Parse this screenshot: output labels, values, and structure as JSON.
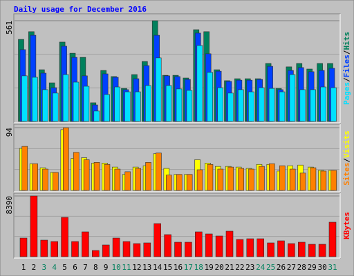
{
  "chart_data": [
    {
      "type": "bar",
      "title": "Daily usage for December 2016",
      "ylim": [
        0,
        561
      ],
      "yticks": [
        561
      ],
      "legend_separator": "/",
      "series": [
        {
          "name": "Hits",
          "color": "#00805c",
          "values": [
            457,
            500,
            288,
            215,
            442,
            380,
            357,
            104,
            284,
            250,
            184,
            261,
            334,
            561,
            257,
            257,
            242,
            511,
            500,
            288,
            227,
            238,
            238,
            238,
            323,
            184,
            304,
            323,
            292,
            323,
            323
          ]
        },
        {
          "name": "Files",
          "color": "#0040ff",
          "values": [
            400,
            480,
            269,
            188,
            419,
            357,
            254,
            92,
            265,
            246,
            177,
            238,
            311,
            480,
            254,
            250,
            234,
            492,
            377,
            280,
            223,
            230,
            230,
            234,
            307,
            177,
            284,
            300,
            277,
            284,
            296
          ]
        },
        {
          "name": "Pages",
          "color": "#00e0ff",
          "values": [
            254,
            246,
            177,
            158,
            261,
            219,
            196,
            58,
            150,
            192,
            165,
            165,
            200,
            354,
            200,
            181,
            173,
            423,
            273,
            188,
            158,
            177,
            165,
            188,
            184,
            165,
            261,
            177,
            177,
            192,
            188
          ]
        }
      ]
    },
    {
      "type": "bar",
      "ylim": [
        0,
        94
      ],
      "yticks": [
        94
      ],
      "series": [
        {
          "name": "Visits",
          "color": "#ffff00",
          "values": [
            63,
            40,
            34,
            27,
            91,
            48,
            49,
            41,
            41,
            35,
            24,
            35,
            37,
            55,
            33,
            24,
            24,
            46,
            41,
            36,
            36,
            35,
            33,
            39,
            39,
            29,
            37,
            38,
            35,
            30,
            30
          ]
        },
        {
          "name": "Sites",
          "color": "#ff8000",
          "values": [
            66,
            40,
            32,
            27,
            94,
            57,
            46,
            42,
            39,
            32,
            28,
            33,
            42,
            56,
            23,
            24,
            24,
            31,
            39,
            32,
            35,
            33,
            32,
            36,
            40,
            37,
            32,
            26,
            34,
            29,
            30
          ]
        }
      ]
    },
    {
      "type": "bar",
      "ylim": [
        0,
        8390
      ],
      "yticks": [
        8390
      ],
      "categories": [
        "1",
        "2",
        "3",
        "4",
        "5",
        "6",
        "7",
        "8",
        "9",
        "10",
        "11",
        "12",
        "13",
        "14",
        "15",
        "16",
        "17",
        "18",
        "19",
        "20",
        "21",
        "22",
        "23",
        "24",
        "25",
        "26",
        "27",
        "28",
        "29",
        "30",
        "31"
      ],
      "category_colors": [
        "#000000",
        "#000000",
        "#00805c",
        "#00805c",
        "#000000",
        "#000000",
        "#000000",
        "#000000",
        "#000000",
        "#00805c",
        "#00805c",
        "#000000",
        "#000000",
        "#000000",
        "#000000",
        "#000000",
        "#00805c",
        "#00805c",
        "#000000",
        "#000000",
        "#000000",
        "#000000",
        "#000000",
        "#00805c",
        "#00805c",
        "#000000",
        "#000000",
        "#000000",
        "#000000",
        "#000000",
        "#00805c"
      ],
      "series": [
        {
          "name": "KBytes",
          "color": "#ff0000",
          "values": [
            2574,
            8390,
            2288,
            2097,
            5434,
            2097,
            3432,
            858,
            1621,
            2574,
            2097,
            1811,
            1907,
            4576,
            3051,
            2002,
            2002,
            3432,
            3146,
            2860,
            3528,
            2383,
            2479,
            2479,
            1907,
            2193,
            1811,
            2002,
            1716,
            1716,
            4767
          ]
        }
      ]
    }
  ]
}
